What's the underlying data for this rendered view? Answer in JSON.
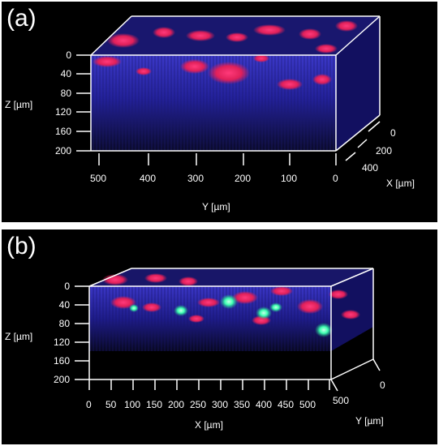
{
  "panels": [
    {
      "label": "(a)",
      "z_axis": {
        "label": "Z [µm]",
        "ticks": [
          "0",
          "40",
          "80",
          "120",
          "160",
          "200"
        ]
      },
      "y_axis": {
        "label": "Y [µm]",
        "ticks": [
          "500",
          "400",
          "300",
          "200",
          "100",
          "0"
        ]
      },
      "x_axis": {
        "label": "X [µm]",
        "ticks": [
          "0",
          "200",
          "400"
        ]
      }
    },
    {
      "label": "(b)",
      "z_axis": {
        "label": "Z [µm]",
        "ticks": [
          "0",
          "40",
          "80",
          "120",
          "160",
          "200"
        ]
      },
      "x_axis": {
        "label": "X [µm]",
        "ticks": [
          "0",
          "50",
          "100",
          "150",
          "200",
          "250",
          "300",
          "350",
          "400",
          "450",
          "500"
        ]
      },
      "y_axis": {
        "label": "Y [µm]",
        "ticks": [
          "500",
          "0"
        ]
      }
    }
  ],
  "colors": {
    "background": "#000000",
    "frame": "#ffffff",
    "tissue": "#2a2a9a",
    "red_channel": "#ff2a6a",
    "green_channel": "#3dffb0"
  }
}
